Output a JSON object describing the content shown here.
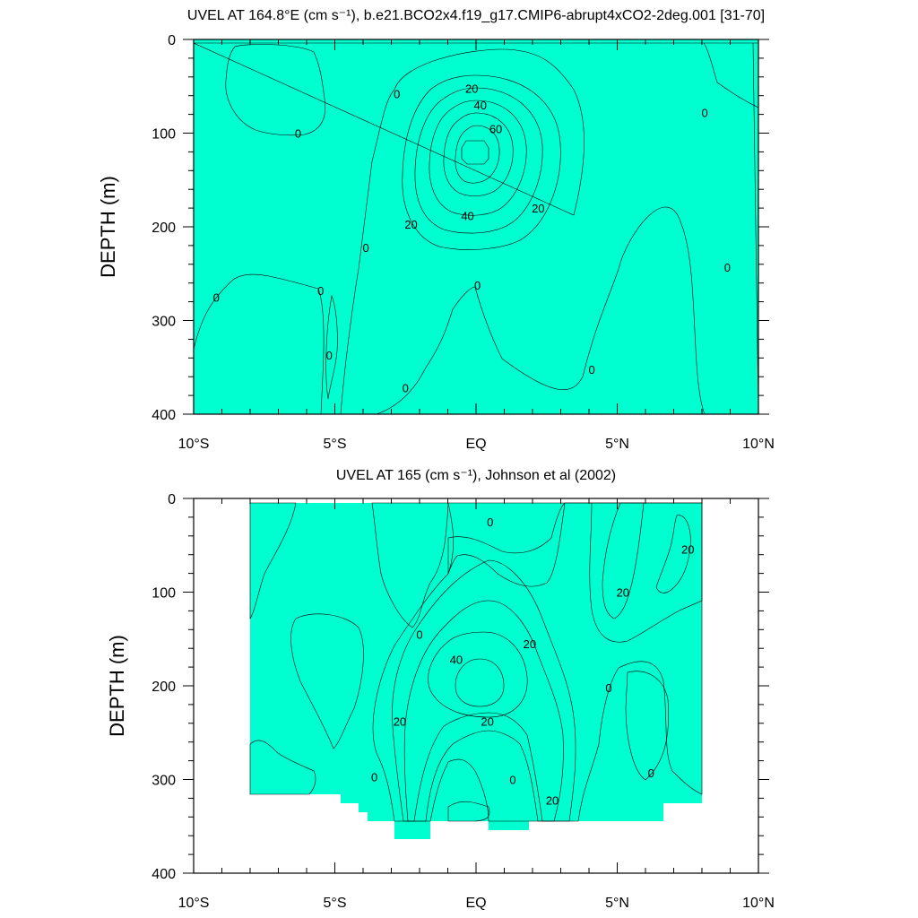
{
  "chart_data": [
    {
      "type": "contour",
      "title": "UVEL AT 164.8°E (cm s⁻¹), b.e21.BCO2x4.f19_g17.CMIP6-abrupt4xCO2-2deg.001 [31-70]",
      "ylabel": "DEPTH (m)",
      "xlim": [
        -10,
        10
      ],
      "ylim": [
        400,
        0
      ],
      "x_ticks": [
        -10,
        -5,
        0,
        5,
        10
      ],
      "x_tick_labels": [
        "10°S",
        "5°S",
        "EQ",
        "5°N",
        "10°N"
      ],
      "y_ticks": [
        0,
        100,
        200,
        300,
        400
      ],
      "y_tick_labels": [
        "0",
        "100",
        "200",
        "300",
        "400"
      ],
      "contour_levels": [
        0,
        20,
        40,
        60
      ],
      "fill_colors": {
        "negative": "#00ffd0",
        "0_to_20": "#33ee33",
        "20_to_30": "#ffff00",
        "30_to_40": "#ffdd33",
        "40_to_50": "#ffb030",
        "50_to_60": "#ff9a20",
        "above_60": "#ff4410"
      },
      "core": {
        "lat": 0,
        "depth": 120,
        "max_speed": 70
      },
      "contour_labels": [
        {
          "text": "20",
          "x": -0.15,
          "y": 52
        },
        {
          "text": "40",
          "x": 0.15,
          "y": 70
        },
        {
          "text": "60",
          "x": 0.7,
          "y": 95
        },
        {
          "text": "40",
          "x": -0.3,
          "y": 188
        },
        {
          "text": "20",
          "x": 2.2,
          "y": 180
        },
        {
          "text": "20",
          "x": -2.3,
          "y": 197
        },
        {
          "text": "0",
          "x": -2.8,
          "y": 58
        },
        {
          "text": "0",
          "x": -6.3,
          "y": 100
        },
        {
          "text": "0",
          "x": 8.1,
          "y": 78
        },
        {
          "text": "0",
          "x": -3.9,
          "y": 222
        },
        {
          "text": "0",
          "x": 8.9,
          "y": 243
        },
        {
          "text": "0",
          "x": -9.2,
          "y": 275
        },
        {
          "text": "0",
          "x": -5.5,
          "y": 268
        },
        {
          "text": "0",
          "x": 0.05,
          "y": 262
        },
        {
          "text": "0",
          "x": -5.2,
          "y": 337
        },
        {
          "text": "0",
          "x": 4.1,
          "y": 352
        },
        {
          "text": "0",
          "x": -2.5,
          "y": 372
        }
      ]
    },
    {
      "type": "contour",
      "title": "UVEL AT 165 (cm s⁻¹), Johnson et al (2002)",
      "ylabel": "DEPTH (m)",
      "xlim": [
        -10,
        10
      ],
      "ylim": [
        400,
        0
      ],
      "x_ticks": [
        -10,
        -5,
        0,
        5,
        10
      ],
      "x_tick_labels": [
        "10°S",
        "5°S",
        "EQ",
        "5°N",
        "10°N"
      ],
      "y_ticks": [
        0,
        100,
        200,
        300,
        400
      ],
      "y_tick_labels": [
        "0",
        "100",
        "200",
        "300",
        "400"
      ],
      "contour_levels": [
        -10,
        0,
        10,
        20,
        30,
        40
      ],
      "data_extent_lat": [
        -8,
        8
      ],
      "fill_colors": {
        "below_-10": "#00ffff",
        "-10_to_0": "#00ffd0",
        "0_to_10": "#33ee33",
        "10_to_20": "#66ff00",
        "20_to_30": "#ffff00",
        "30_to_40": "#ffdd33",
        "above_40": "#ffb030"
      },
      "core": {
        "lat": 0,
        "depth": 185,
        "max_speed": 45
      },
      "contour_labels": [
        {
          "text": "40",
          "x": -0.7,
          "y": 172
        },
        {
          "text": "20",
          "x": 1.9,
          "y": 155
        },
        {
          "text": "20",
          "x": 0.4,
          "y": 238
        },
        {
          "text": "20",
          "x": -2.7,
          "y": 238
        },
        {
          "text": "20",
          "x": 7.5,
          "y": 54
        },
        {
          "text": "20",
          "x": 5.2,
          "y": 100
        },
        {
          "text": "20",
          "x": 2.7,
          "y": 322
        },
        {
          "text": "0",
          "x": 0.5,
          "y": 25
        },
        {
          "text": "0",
          "x": -2.0,
          "y": 145
        },
        {
          "text": "0",
          "x": 4.7,
          "y": 202
        },
        {
          "text": "0",
          "x": -3.6,
          "y": 297
        },
        {
          "text": "0",
          "x": 1.3,
          "y": 300
        },
        {
          "text": "0",
          "x": 6.2,
          "y": 293
        }
      ]
    }
  ]
}
